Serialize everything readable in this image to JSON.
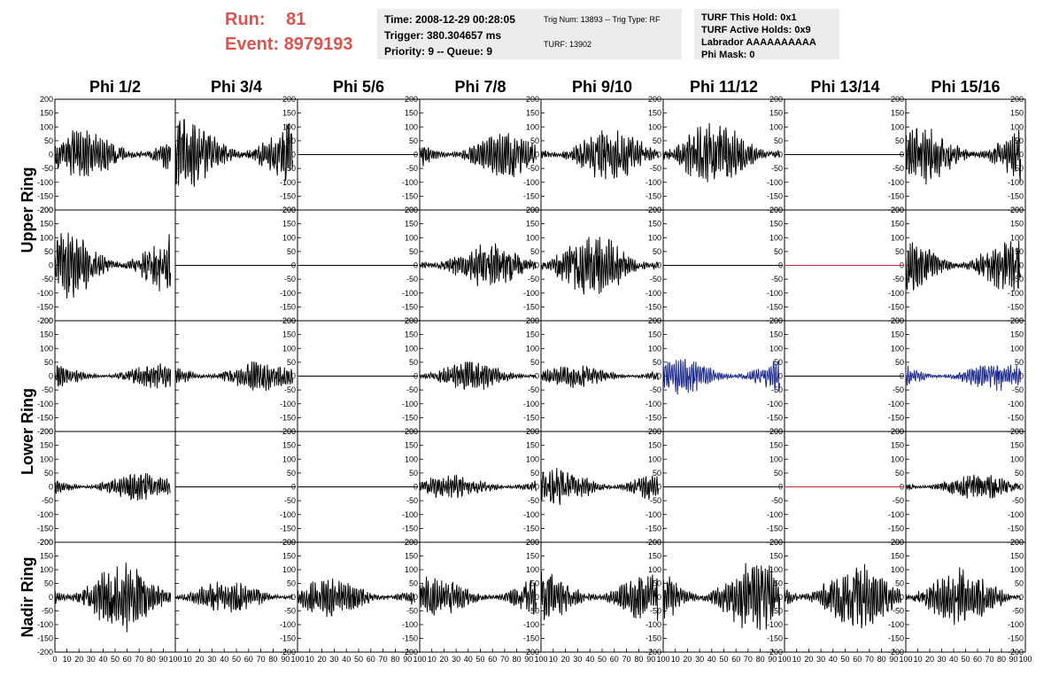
{
  "header": {
    "run_label": "Run:",
    "run_value": "81",
    "event_label": "Event:",
    "event_value": "8979193",
    "label_color": "#d9534f"
  },
  "info_time": {
    "time": "Time: 2008-12-29 00:28:05",
    "trigger": "Trigger: 380.304657 ms",
    "priority": "Priority: 9 -- Queue: 9"
  },
  "info_trig": {
    "trig": "Trig Num: 13893 -- Trig Type: RF",
    "turf": "TURF: 13902"
  },
  "info_turf": {
    "this_hold": "TURF This Hold: 0x1",
    "active_holds": "TURF Active Holds: 0x9",
    "labrador": "Labrador AAAAAAAAAA",
    "phi_mask": "Phi Mask: 0"
  },
  "chart_data": {
    "type": "line",
    "columns": [
      "Phi 1/2",
      "Phi 3/4",
      "Phi 5/6",
      "Phi 7/8",
      "Phi 9/10",
      "Phi 11/12",
      "Phi 13/14",
      "Phi 15/16"
    ],
    "ring_labels": [
      "Upper Ring",
      "Lower Ring",
      "Nadir Ring"
    ],
    "xlim": [
      0,
      100
    ],
    "ylim": [
      -200,
      200
    ],
    "x_ticks": [
      0,
      10,
      20,
      30,
      40,
      50,
      60,
      70,
      80,
      90,
      100
    ],
    "y_ticks": [
      -200,
      -150,
      -100,
      -50,
      0,
      50,
      100,
      150,
      200
    ],
    "colors": {
      "trace": "#000000",
      "blue": "#1c2a8c",
      "red": "#c03030"
    },
    "rows": [
      [
        "noise:80",
        "noise:110",
        "flat",
        "noise:70",
        "noise:80",
        "noise:100",
        "flat",
        "noise:90"
      ],
      [
        "noise:100",
        "flat",
        "flat",
        "noise:75",
        "noise:95",
        "flat",
        "flat-red",
        "noise:85"
      ],
      [
        "noise:40",
        "noise:50",
        "flat",
        "noise:45",
        "noise:35",
        "blue:60",
        "flat",
        "blue:45"
      ],
      [
        "noise:45",
        "flat",
        "flat",
        "noise:40",
        "noise:60",
        "flat",
        "flat-red",
        "noise:40"
      ],
      [
        "noise:110",
        "noise:50",
        "noise:60",
        "noise:65",
        "noise:80",
        "noise:110",
        "noise:100",
        "noise:90"
      ]
    ]
  }
}
